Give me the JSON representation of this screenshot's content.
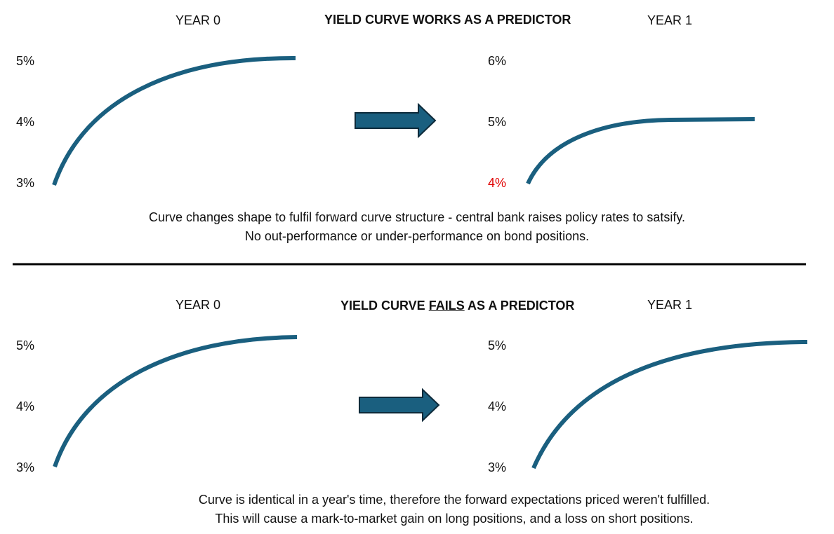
{
  "colors": {
    "curve": "#1a5f7f",
    "arrow_fill": "#1a5f7f",
    "arrow_stroke": "#0d2a3a",
    "highlight_tick": "#e00000",
    "divider": "#000000"
  },
  "top": {
    "title": "YIELD CURVE WORKS AS A PREDICTOR",
    "left_header": "YEAR 0",
    "right_header": "YEAR 1",
    "left_ticks": [
      "5%",
      "4%",
      "3%"
    ],
    "right_ticks": [
      "6%",
      "5%",
      "4%"
    ],
    "caption_line1": "Curve changes shape to fulfil forward curve structure - central bank raises policy rates to satsify.",
    "caption_line2": "No out-performance or under-performance on bond positions."
  },
  "bottom": {
    "title_pre": "YIELD CURVE ",
    "title_emph": "FAILS",
    "title_post": " AS A PREDICTOR",
    "left_header": "YEAR 0",
    "right_header": "YEAR 1",
    "left_ticks": [
      "5%",
      "4%",
      "3%"
    ],
    "right_ticks": [
      "5%",
      "4%",
      "3%"
    ],
    "caption_line1": "Curve is identical in a year's time, therefore the forward expectations priced weren't fulfilled.",
    "caption_line2": "This will cause a mark-to-market gain on long positions, and a loss on short positions."
  }
}
